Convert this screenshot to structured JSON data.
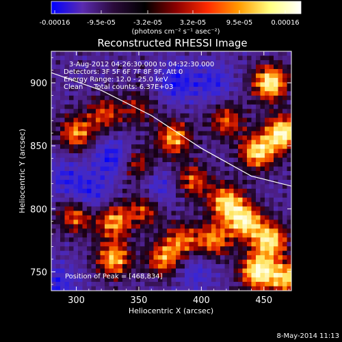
{
  "colorbar": {
    "tick_labels": [
      "-0.00016",
      "-9.5e-05",
      "-3.2e-05",
      "3.2e-05",
      "9.5e-05",
      "0.00016"
    ],
    "units_label": "(photons cm⁻² s⁻¹ asec⁻²)",
    "colors": [
      "#0000ff",
      "#5b2bb0",
      "#2a0a3a",
      "#000000",
      "#8b0000",
      "#ff2a00",
      "#ff9a00",
      "#ffff80",
      "#ffffff"
    ]
  },
  "chart_data": {
    "type": "heatmap",
    "title": "Reconstructed RHESSI Image",
    "xlabel": "Heliocentric X (arcsec)",
    "ylabel": "Heliocentric Y (arcsec)",
    "xlim": [
      280,
      472
    ],
    "ylim": [
      735,
      925
    ],
    "x_ticks": [
      300,
      350,
      400,
      450
    ],
    "y_ticks": [
      750,
      800,
      850,
      900
    ],
    "value_range": [
      -0.00016,
      0.00016
    ],
    "annotations": [
      "3-Aug-2012 04:26:30.000 to 04:32:30.000",
      "Detectors: 3F 5F 6F 7F 8F 9F, Att 0",
      "Energy Range: 12.0 - 25.0 keV",
      "Clean     Total counts: 6.37E+03"
    ],
    "peak_label": "Position of Peak = [468,834]",
    "limb_curve": [
      [
        280,
        908
      ],
      [
        320,
        894
      ],
      [
        360,
        874
      ],
      [
        400,
        848
      ],
      [
        440,
        826
      ],
      [
        472,
        818
      ]
    ],
    "hot_regions": [
      {
        "x": 455,
        "y": 900,
        "weight": 1.0
      },
      {
        "x": 465,
        "y": 860,
        "weight": 1.0
      },
      {
        "x": 445,
        "y": 845,
        "weight": 0.9
      },
      {
        "x": 420,
        "y": 870,
        "weight": 0.6
      },
      {
        "x": 378,
        "y": 856,
        "weight": 0.75
      },
      {
        "x": 393,
        "y": 822,
        "weight": 0.6
      },
      {
        "x": 300,
        "y": 860,
        "weight": 0.7
      },
      {
        "x": 323,
        "y": 875,
        "weight": 0.55
      },
      {
        "x": 348,
        "y": 835,
        "weight": 0.55
      },
      {
        "x": 300,
        "y": 795,
        "weight": 0.7
      },
      {
        "x": 330,
        "y": 790,
        "weight": 0.75
      },
      {
        "x": 355,
        "y": 800,
        "weight": 0.6
      },
      {
        "x": 385,
        "y": 775,
        "weight": 0.6
      },
      {
        "x": 330,
        "y": 760,
        "weight": 0.8
      },
      {
        "x": 370,
        "y": 760,
        "weight": 0.7
      },
      {
        "x": 420,
        "y": 805,
        "weight": 0.85
      },
      {
        "x": 435,
        "y": 790,
        "weight": 0.9
      },
      {
        "x": 455,
        "y": 775,
        "weight": 0.9
      },
      {
        "x": 445,
        "y": 750,
        "weight": 1.0
      },
      {
        "x": 468,
        "y": 745,
        "weight": 0.8
      },
      {
        "x": 410,
        "y": 775,
        "weight": 0.7
      },
      {
        "x": 350,
        "y": 880,
        "weight": 0.4
      }
    ],
    "cold_regions": [
      {
        "x": 330,
        "y": 840,
        "weight": 0.8
      },
      {
        "x": 310,
        "y": 810,
        "weight": 0.7
      },
      {
        "x": 380,
        "y": 900,
        "weight": 0.7
      },
      {
        "x": 410,
        "y": 900,
        "weight": 0.6
      },
      {
        "x": 365,
        "y": 815,
        "weight": 0.6
      },
      {
        "x": 395,
        "y": 750,
        "weight": 0.5
      },
      {
        "x": 285,
        "y": 740,
        "weight": 0.6
      },
      {
        "x": 290,
        "y": 825,
        "weight": 0.5
      }
    ]
  },
  "timestamp": "8-May-2014 11:13"
}
